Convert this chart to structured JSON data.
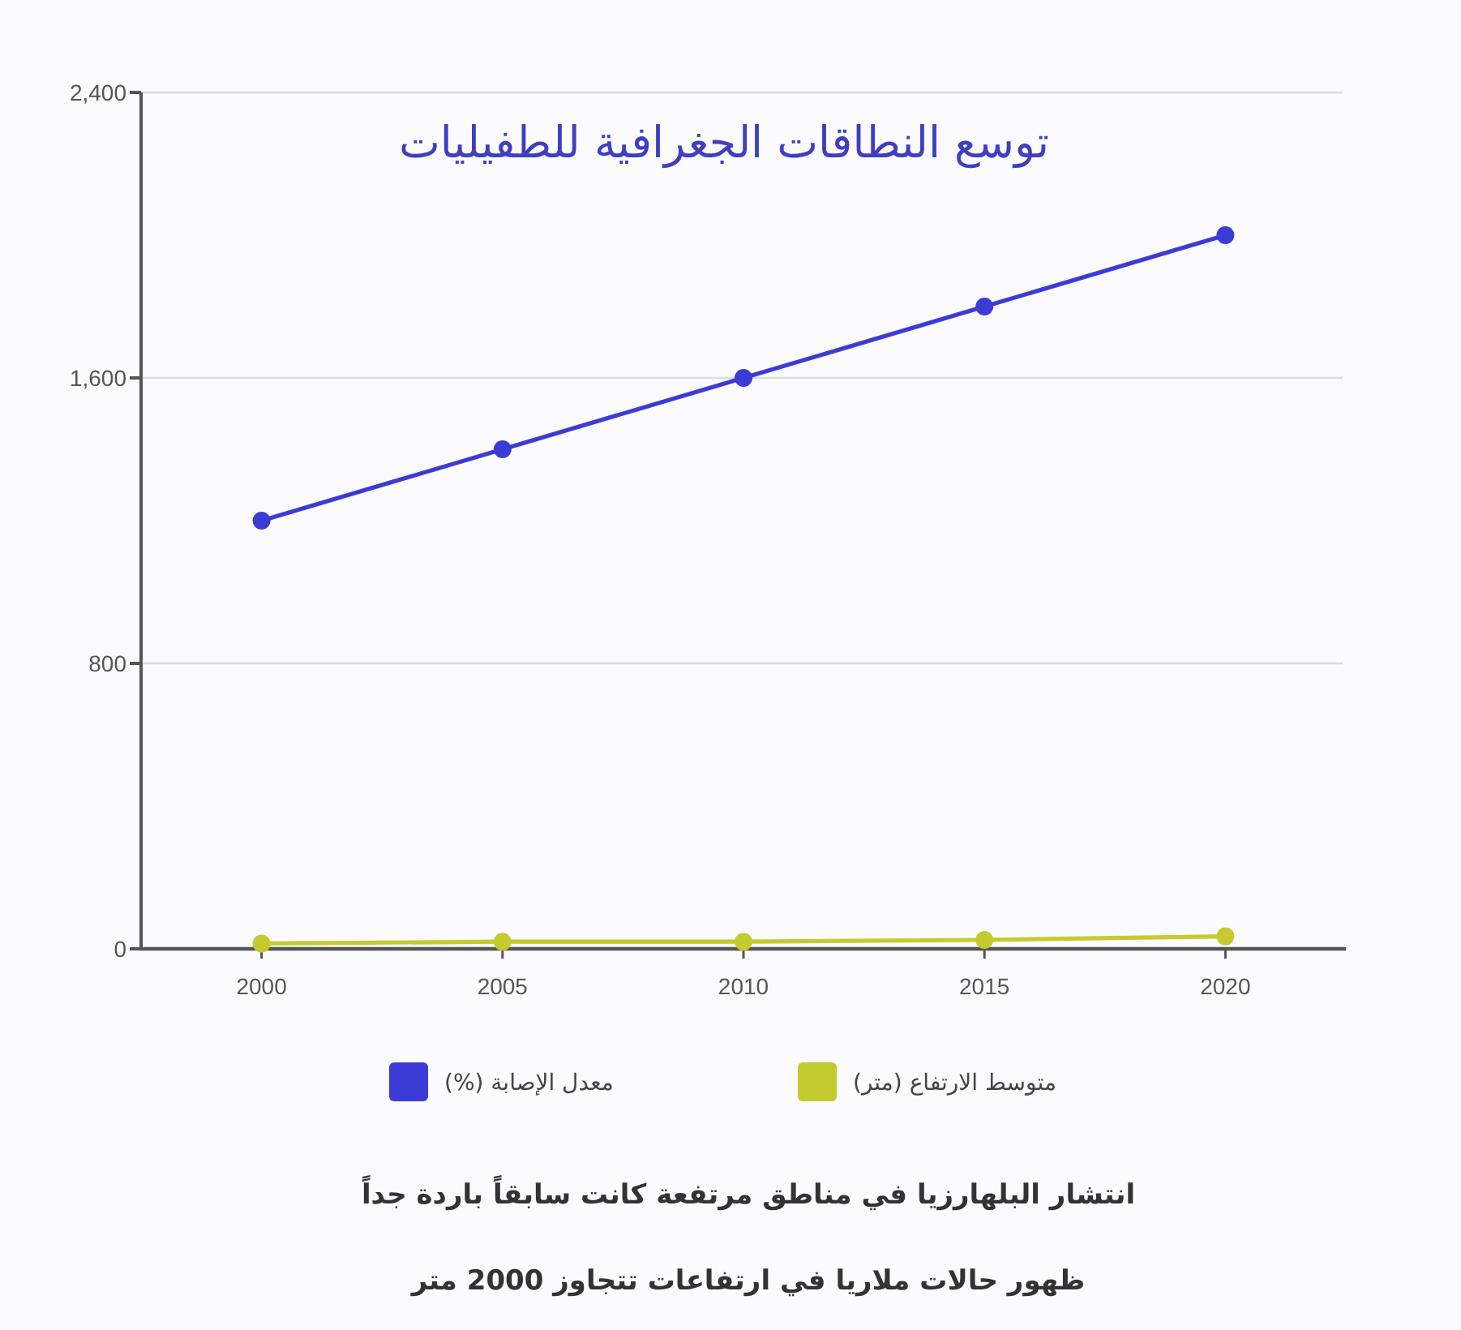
{
  "chart_data": {
    "type": "line",
    "title": "توسع النطاقات الجغرافية للطفيليات",
    "categories": [
      "2000",
      "2005",
      "2010",
      "2015",
      "2020"
    ],
    "series": [
      {
        "name": "معدل الإصابة (%)",
        "color": "#3b3bd6",
        "values": [
          1200,
          1400,
          1600,
          1800,
          2000
        ]
      },
      {
        "name": "متوسط الارتفاع (متر)",
        "color": "#c4cb2e",
        "values": [
          15,
          20,
          20,
          25,
          35
        ]
      }
    ],
    "ylim": [
      0,
      2400
    ],
    "yticks": [
      0,
      800,
      {
        "value": 1600,
        "label": "1,600"
      },
      {
        "value": 2400,
        "label": "2,400"
      }
    ],
    "grid": "y",
    "legend": "bottom",
    "marker": "circle",
    "line_style": "solid",
    "annotations": [
      "انتشار البلهارزيا في مناطق مرتفعة كانت سابقاً باردة جداً",
      "ظهور حالات ملاريا في ارتفاعات تتجاوز 2000 متر"
    ]
  }
}
